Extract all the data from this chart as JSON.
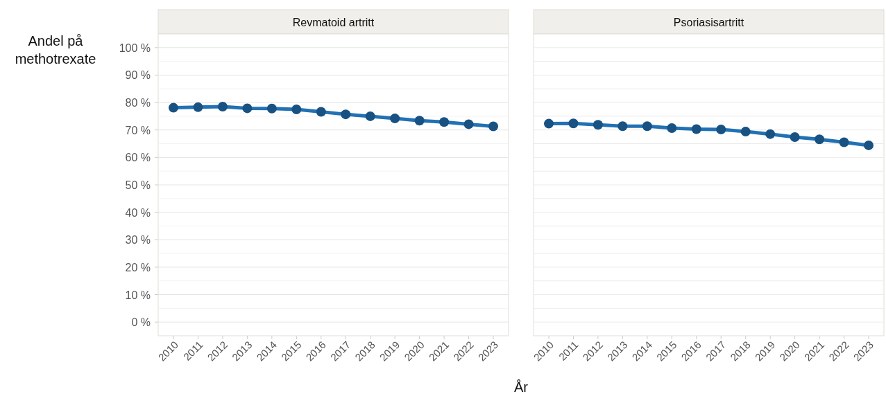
{
  "chart_data": [
    {
      "type": "line",
      "title": "Revmatoid artritt",
      "ylabel": "Andel på methotrexate",
      "xlabel": "År",
      "categories": [
        "2010",
        "2011",
        "2012",
        "2013",
        "2014",
        "2015",
        "2016",
        "2017",
        "2018",
        "2019",
        "2020",
        "2021",
        "2022",
        "2023"
      ],
      "series": [
        {
          "color": "#2171b5",
          "values": [
            78.1,
            78.3,
            78.5,
            77.9,
            77.8,
            77.5,
            76.6,
            75.7,
            75.0,
            74.2,
            73.4,
            72.9,
            72.1,
            71.3
          ]
        }
      ],
      "ylim": [
        -5,
        105
      ],
      "yticks": [
        {
          "value": 0,
          "label": "0 %"
        },
        {
          "value": 5,
          "label": null
        },
        {
          "value": 10,
          "label": "10 %"
        },
        {
          "value": 15,
          "label": null
        },
        {
          "value": 20,
          "label": "20 %"
        },
        {
          "value": 25,
          "label": null
        },
        {
          "value": 30,
          "label": "30 %"
        },
        {
          "value": 35,
          "label": null
        },
        {
          "value": 40,
          "label": "40 %"
        },
        {
          "value": 45,
          "label": null
        },
        {
          "value": 50,
          "label": "50 %"
        },
        {
          "value": 55,
          "label": null
        },
        {
          "value": 60,
          "label": "60 %"
        },
        {
          "value": 65,
          "label": null
        },
        {
          "value": 70,
          "label": "70 %"
        },
        {
          "value": 75,
          "label": null
        },
        {
          "value": 80,
          "label": "80 %"
        },
        {
          "value": 85,
          "label": null
        },
        {
          "value": 90,
          "label": "90 %"
        },
        {
          "value": 95,
          "label": null
        },
        {
          "value": 100,
          "label": "100 %"
        }
      ],
      "grid": true,
      "marker": "circle",
      "line_style": "solid"
    },
    {
      "type": "line",
      "title": "Psoriasisartritt",
      "categories": [
        "2010",
        "2011",
        "2012",
        "2013",
        "2014",
        "2015",
        "2016",
        "2017",
        "2018",
        "2019",
        "2020",
        "2021",
        "2022",
        "2023"
      ],
      "series": [
        {
          "color": "#2171b5",
          "values": [
            72.3,
            72.4,
            71.9,
            71.4,
            71.4,
            70.7,
            70.3,
            70.2,
            69.4,
            68.5,
            67.4,
            66.6,
            65.5,
            64.4
          ]
        }
      ],
      "ylim": [
        -5,
        105
      ],
      "yticks": [
        0,
        5,
        10,
        15,
        20,
        25,
        30,
        35,
        40,
        45,
        50,
        55,
        60,
        65,
        70,
        75,
        80,
        85,
        90,
        95,
        100
      ],
      "grid": true,
      "marker": "circle",
      "line_style": "solid",
      "tick_labels": "x"
    }
  ]
}
